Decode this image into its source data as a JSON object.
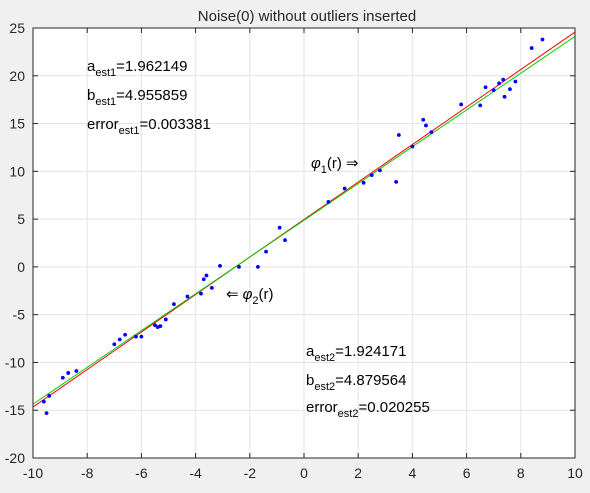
{
  "chart_data": {
    "type": "scatter",
    "title": "Noise(0) without outliers inserted",
    "xlabel": "",
    "ylabel": "",
    "xlim": [
      -10,
      10
    ],
    "ylim": [
      -20,
      25
    ],
    "xticks": [
      -10,
      -8,
      -6,
      -4,
      -2,
      0,
      2,
      4,
      6,
      8,
      10
    ],
    "yticks": [
      -20,
      -15,
      -10,
      -5,
      0,
      5,
      10,
      15,
      20,
      25
    ],
    "grid": true,
    "series": [
      {
        "kind": "points",
        "color": "#0000ff",
        "x": [
          -9.6,
          -9.5,
          -9.4,
          -8.9,
          -8.7,
          -8.4,
          -7.0,
          -6.8,
          -6.6,
          -6.2,
          -6.0,
          -5.5,
          -5.4,
          -5.3,
          -5.1,
          -4.8,
          -4.3,
          -3.8,
          -3.7,
          -3.6,
          -3.4,
          -3.1,
          -2.4,
          -1.7,
          -1.4,
          -0.9,
          -0.7,
          0.9,
          1.5,
          2.2,
          2.5,
          2.8,
          3.4,
          3.5,
          4.0,
          4.4,
          4.5,
          4.7,
          5.8,
          6.5,
          6.7,
          7.0,
          7.2,
          7.4,
          7.35,
          7.6,
          7.8,
          8.4,
          8.8
        ],
        "y": [
          -14.1,
          -15.3,
          -13.5,
          -11.6,
          -11.1,
          -10.9,
          -8.1,
          -7.6,
          -7.1,
          -7.3,
          -7.3,
          -6.1,
          -6.3,
          -6.2,
          -5.5,
          -3.9,
          -3.1,
          -2.8,
          -1.3,
          -0.9,
          -2.2,
          0.1,
          0.0,
          0.0,
          1.6,
          4.1,
          2.8,
          6.8,
          8.2,
          8.8,
          9.6,
          10.1,
          8.9,
          13.8,
          12.6,
          15.4,
          14.8,
          14.1,
          17.0,
          16.9,
          18.8,
          18.5,
          19.2,
          17.8,
          19.6,
          18.6,
          19.4,
          22.9,
          23.8
        ]
      },
      {
        "kind": "line",
        "color": "#ff0000",
        "slope": 1.962149,
        "intercept": 4.955859
      },
      {
        "kind": "line",
        "color": "#00cc00",
        "slope": 1.924171,
        "intercept": 4.879564
      }
    ],
    "annotations": {
      "est1": {
        "a_base": "a",
        "a_sub": "est1",
        "a_val": "=1.962149",
        "b_base": "b",
        "b_sub": "est1",
        "b_val": "=4.955859",
        "e_base": "error",
        "e_sub": "est1",
        "e_val": "=0.003381"
      },
      "est2": {
        "a_base": "a",
        "a_sub": "est2",
        "a_val": "=1.924171",
        "b_base": "b",
        "b_sub": "est2",
        "b_val": "=4.879564",
        "e_base": "error",
        "e_sub": "est2",
        "e_val": "=0.020255"
      },
      "phi1": {
        "sym": "φ",
        "sub": "1",
        "rest": "(r)",
        "arrow": "⇒"
      },
      "phi2": {
        "sym": "φ",
        "sub": "2",
        "rest": "(r)",
        "arrow": "⇐"
      }
    }
  }
}
